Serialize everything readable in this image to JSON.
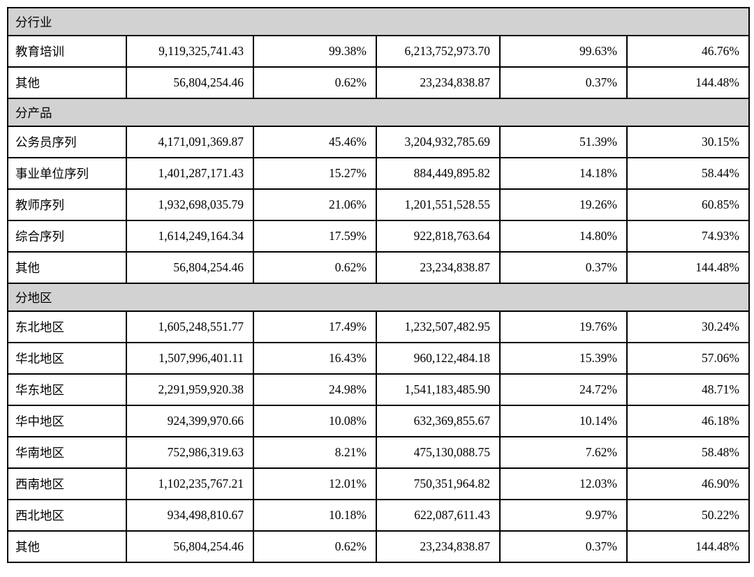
{
  "colors": {
    "section_header_bg": "#d2d2d2",
    "border": "#000000",
    "text": "#000000",
    "page_bg": "#ffffff"
  },
  "table": {
    "columns_per_row": 6,
    "sections": [
      {
        "title": "分行业",
        "rows": [
          {
            "label": "教育培训",
            "v1": "9,119,325,741.43",
            "p1": "99.38%",
            "v2": "6,213,752,973.70",
            "p2": "99.63%",
            "p3": "46.76%"
          },
          {
            "label": "其他",
            "v1": "56,804,254.46",
            "p1": "0.62%",
            "v2": "23,234,838.87",
            "p2": "0.37%",
            "p3": "144.48%"
          }
        ]
      },
      {
        "title": "分产品",
        "rows": [
          {
            "label": "公务员序列",
            "v1": "4,171,091,369.87",
            "p1": "45.46%",
            "v2": "3,204,932,785.69",
            "p2": "51.39%",
            "p3": "30.15%"
          },
          {
            "label": "事业单位序列",
            "v1": "1,401,287,171.43",
            "p1": "15.27%",
            "v2": "884,449,895.82",
            "p2": "14.18%",
            "p3": "58.44%"
          },
          {
            "label": "教师序列",
            "v1": "1,932,698,035.79",
            "p1": "21.06%",
            "v2": "1,201,551,528.55",
            "p2": "19.26%",
            "p3": "60.85%"
          },
          {
            "label": "综合序列",
            "v1": "1,614,249,164.34",
            "p1": "17.59%",
            "v2": "922,818,763.64",
            "p2": "14.80%",
            "p3": "74.93%"
          },
          {
            "label": "其他",
            "v1": "56,804,254.46",
            "p1": "0.62%",
            "v2": "23,234,838.87",
            "p2": "0.37%",
            "p3": "144.48%"
          }
        ]
      },
      {
        "title": "分地区",
        "rows": [
          {
            "label": "东北地区",
            "v1": "1,605,248,551.77",
            "p1": "17.49%",
            "v2": "1,232,507,482.95",
            "p2": "19.76%",
            "p3": "30.24%"
          },
          {
            "label": "华北地区",
            "v1": "1,507,996,401.11",
            "p1": "16.43%",
            "v2": "960,122,484.18",
            "p2": "15.39%",
            "p3": "57.06%"
          },
          {
            "label": "华东地区",
            "v1": "2,291,959,920.38",
            "p1": "24.98%",
            "v2": "1,541,183,485.90",
            "p2": "24.72%",
            "p3": "48.71%"
          },
          {
            "label": "华中地区",
            "v1": "924,399,970.66",
            "p1": "10.08%",
            "v2": "632,369,855.67",
            "p2": "10.14%",
            "p3": "46.18%"
          },
          {
            "label": "华南地区",
            "v1": "752,986,319.63",
            "p1": "8.21%",
            "v2": "475,130,088.75",
            "p2": "7.62%",
            "p3": "58.48%"
          },
          {
            "label": "西南地区",
            "v1": "1,102,235,767.21",
            "p1": "12.01%",
            "v2": "750,351,964.82",
            "p2": "12.03%",
            "p3": "46.90%"
          },
          {
            "label": "西北地区",
            "v1": "934,498,810.67",
            "p1": "10.18%",
            "v2": "622,087,611.43",
            "p2": "9.97%",
            "p3": "50.22%"
          },
          {
            "label": "其他",
            "v1": "56,804,254.46",
            "p1": "0.62%",
            "v2": "23,234,838.87",
            "p2": "0.37%",
            "p3": "144.48%"
          }
        ]
      }
    ]
  }
}
